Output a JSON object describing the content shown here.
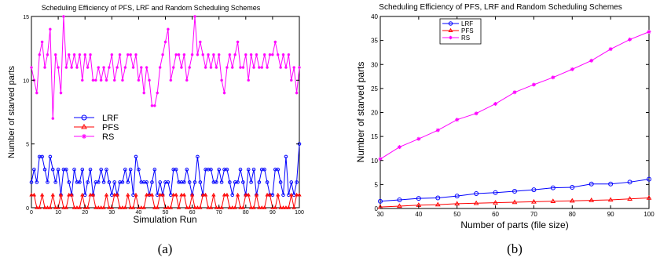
{
  "chart_data": [
    {
      "type": "line",
      "title": "Scheduling Efficiency of PFS, LRF and Random Scheduling Schemes",
      "xlabel": "Simulation Run",
      "ylabel": "Number of starved parts",
      "xlim": [
        0,
        100
      ],
      "ylim": [
        0,
        15
      ],
      "xticks": [
        0,
        10,
        20,
        30,
        40,
        50,
        60,
        70,
        80,
        90,
        100
      ],
      "yticks": [
        0,
        5,
        10,
        15
      ],
      "legend_position": "center-left",
      "caption": "(a)",
      "series": [
        {
          "name": "LRF",
          "color": "#0000ff",
          "marker": "circle",
          "values": [
            2,
            3,
            2,
            4,
            4,
            3,
            2,
            4,
            3,
            2,
            3,
            1,
            3,
            3,
            2,
            1,
            3,
            2,
            2,
            3,
            1,
            2,
            3,
            1,
            2,
            2,
            3,
            2,
            3,
            2,
            1,
            2,
            1,
            2,
            2,
            3,
            2,
            3,
            1,
            4,
            3,
            2,
            2,
            2,
            1,
            2,
            3,
            1,
            2,
            1,
            2,
            2,
            1,
            3,
            3,
            2,
            2,
            2,
            3,
            2,
            1,
            2,
            4,
            2,
            1,
            3,
            3,
            3,
            2,
            2,
            3,
            2,
            3,
            3,
            2,
            1,
            2,
            2,
            3,
            2,
            1,
            3,
            2,
            3,
            1,
            2,
            3,
            3,
            2,
            1,
            1,
            3,
            3,
            2,
            1,
            4,
            1,
            2,
            1,
            2,
            5
          ]
        },
        {
          "name": "PFS",
          "color": "#ff0000",
          "marker": "triangle",
          "values": [
            1,
            1,
            0,
            0,
            1,
            0,
            0,
            0,
            1,
            0,
            0,
            1,
            0,
            0,
            1,
            1,
            0,
            0,
            0,
            1,
            0,
            0,
            1,
            1,
            0,
            0,
            0,
            0,
            1,
            0,
            0,
            1,
            1,
            0,
            0,
            0,
            1,
            0,
            0,
            1,
            0,
            0,
            0,
            1,
            1,
            1,
            0,
            0,
            1,
            1,
            0,
            0,
            0,
            1,
            1,
            0,
            1,
            1,
            0,
            0,
            1,
            0,
            0,
            0,
            1,
            1,
            0,
            0,
            1,
            0,
            0,
            0,
            1,
            1,
            0,
            0,
            0,
            1,
            0,
            0,
            1,
            1,
            0,
            0,
            1,
            0,
            0,
            0,
            1,
            1,
            0,
            0,
            1,
            0,
            0,
            0,
            0,
            1,
            0,
            1,
            1
          ]
        },
        {
          "name": "RS",
          "color": "#ff00ff",
          "marker": "asterisk",
          "values": [
            11,
            10,
            9,
            12,
            13,
            11,
            12,
            14,
            7,
            12,
            11,
            9,
            15,
            11,
            12,
            11,
            12,
            11,
            12,
            10,
            12,
            11,
            12,
            10,
            10,
            11,
            10,
            11,
            10,
            11,
            12,
            10,
            11,
            12,
            10,
            11,
            12,
            12,
            11,
            12,
            10,
            11,
            9,
            11,
            10,
            8,
            8,
            9,
            11,
            12,
            13,
            14,
            10,
            11,
            12,
            12,
            11,
            12,
            10,
            11,
            12,
            15,
            12,
            13,
            12,
            11,
            12,
            11,
            12,
            11,
            12,
            10,
            9,
            11,
            12,
            11,
            12,
            13,
            11,
            11,
            12,
            10,
            12,
            11,
            12,
            11,
            11,
            12,
            11,
            12,
            12,
            13,
            12,
            11,
            12,
            11,
            12,
            10,
            11,
            9,
            11
          ]
        }
      ]
    },
    {
      "type": "line",
      "title": "Scheduling Efficiency of PFS, LRF and Random Scheduling Schemes",
      "xlabel": "Number of parts (file size)",
      "ylabel": "Number of starved parts",
      "xlim": [
        30,
        100
      ],
      "ylim": [
        0,
        40
      ],
      "xticks": [
        30,
        40,
        50,
        60,
        70,
        80,
        90,
        100
      ],
      "yticks": [
        0,
        5,
        10,
        15,
        20,
        25,
        30,
        35,
        40
      ],
      "legend_position": "top-left",
      "caption": "(b)",
      "x": [
        30,
        35,
        40,
        45,
        50,
        55,
        60,
        65,
        70,
        75,
        80,
        85,
        90,
        95,
        100
      ],
      "series": [
        {
          "name": "LRF",
          "color": "#0000ff",
          "marker": "circle",
          "values": [
            1.5,
            1.8,
            2.1,
            2.2,
            2.6,
            3.1,
            3.3,
            3.6,
            3.9,
            4.3,
            4.4,
            5.1,
            5.1,
            5.5,
            6.1
          ]
        },
        {
          "name": "PFS",
          "color": "#ff0000",
          "marker": "triangle",
          "values": [
            0.3,
            0.5,
            0.7,
            0.8,
            1.0,
            1.1,
            1.2,
            1.3,
            1.4,
            1.5,
            1.6,
            1.7,
            1.8,
            2.0,
            2.2
          ]
        },
        {
          "name": "RS",
          "color": "#ff00ff",
          "marker": "asterisk",
          "values": [
            10.3,
            12.8,
            14.5,
            16.3,
            18.5,
            19.8,
            21.8,
            24.2,
            25.8,
            27.3,
            29.0,
            30.8,
            33.2,
            35.2,
            36.8
          ]
        }
      ]
    }
  ]
}
